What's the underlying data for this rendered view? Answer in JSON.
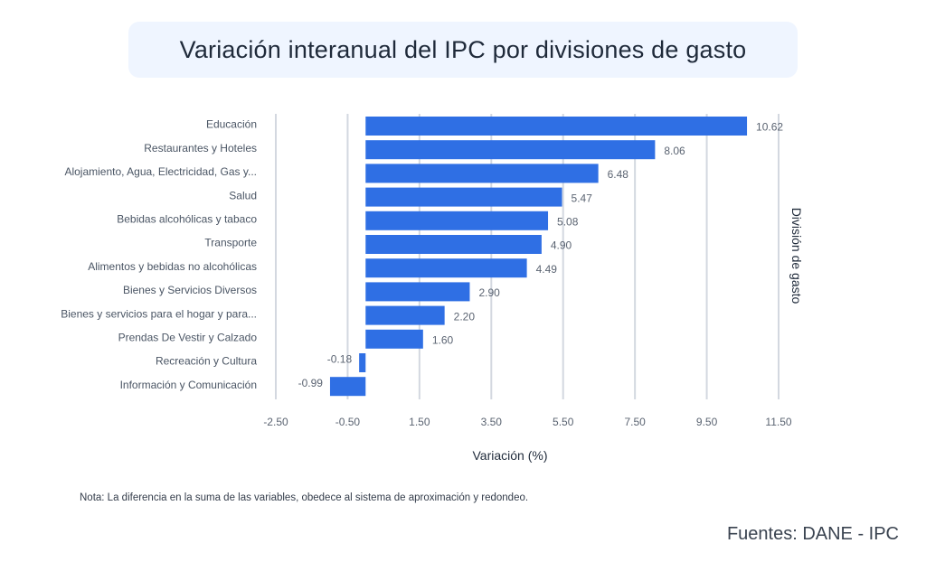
{
  "header": {
    "title": "Variación interanual del IPC por divisiones de gasto"
  },
  "footer": {
    "note": "Nota: La diferencia en la suma de las variables, obedece al sistema de aproximación y redondeo.",
    "source": "Fuentes: DANE - IPC"
  },
  "colors": {
    "bar": "#2f6fe4",
    "grid": "#d3d8e0",
    "tick_text": "#5b6472",
    "label_text": "#4a5564"
  },
  "chart_data": {
    "type": "bar",
    "orientation": "horizontal",
    "title": "Variación interanual del IPC por divisiones de gasto",
    "xlabel": "Variación (%)",
    "ylabel": "División de gasto",
    "xlim": [
      -2.5,
      11.5
    ],
    "xticks": [
      "-2.50",
      "-0.50",
      "1.50",
      "3.50",
      "5.50",
      "7.50",
      "9.50",
      "11.50"
    ],
    "grid": true,
    "categories": [
      "Educación",
      "Restaurantes y Hoteles",
      "Alojamiento, Agua, Electricidad, Gas y...",
      "Salud",
      "Bebidas alcohólicas y tabaco",
      "Transporte",
      "Alimentos y bebidas no alcohólicas",
      "Bienes y Servicios Diversos",
      "Bienes y servicios para el hogar y para...",
      "Prendas De Vestir y Calzado",
      "Recreación y Cultura",
      "Información y Comunicación"
    ],
    "values": [
      10.62,
      8.06,
      6.48,
      5.47,
      5.08,
      4.9,
      4.49,
      2.9,
      2.2,
      1.6,
      -0.18,
      -0.99
    ],
    "value_labels": [
      "10.62",
      "8.06",
      "6.48",
      "5.47",
      "5.08",
      "4.90",
      "4.49",
      "2.90",
      "2.20",
      "1.60",
      "-0.18",
      "-0.99"
    ]
  }
}
